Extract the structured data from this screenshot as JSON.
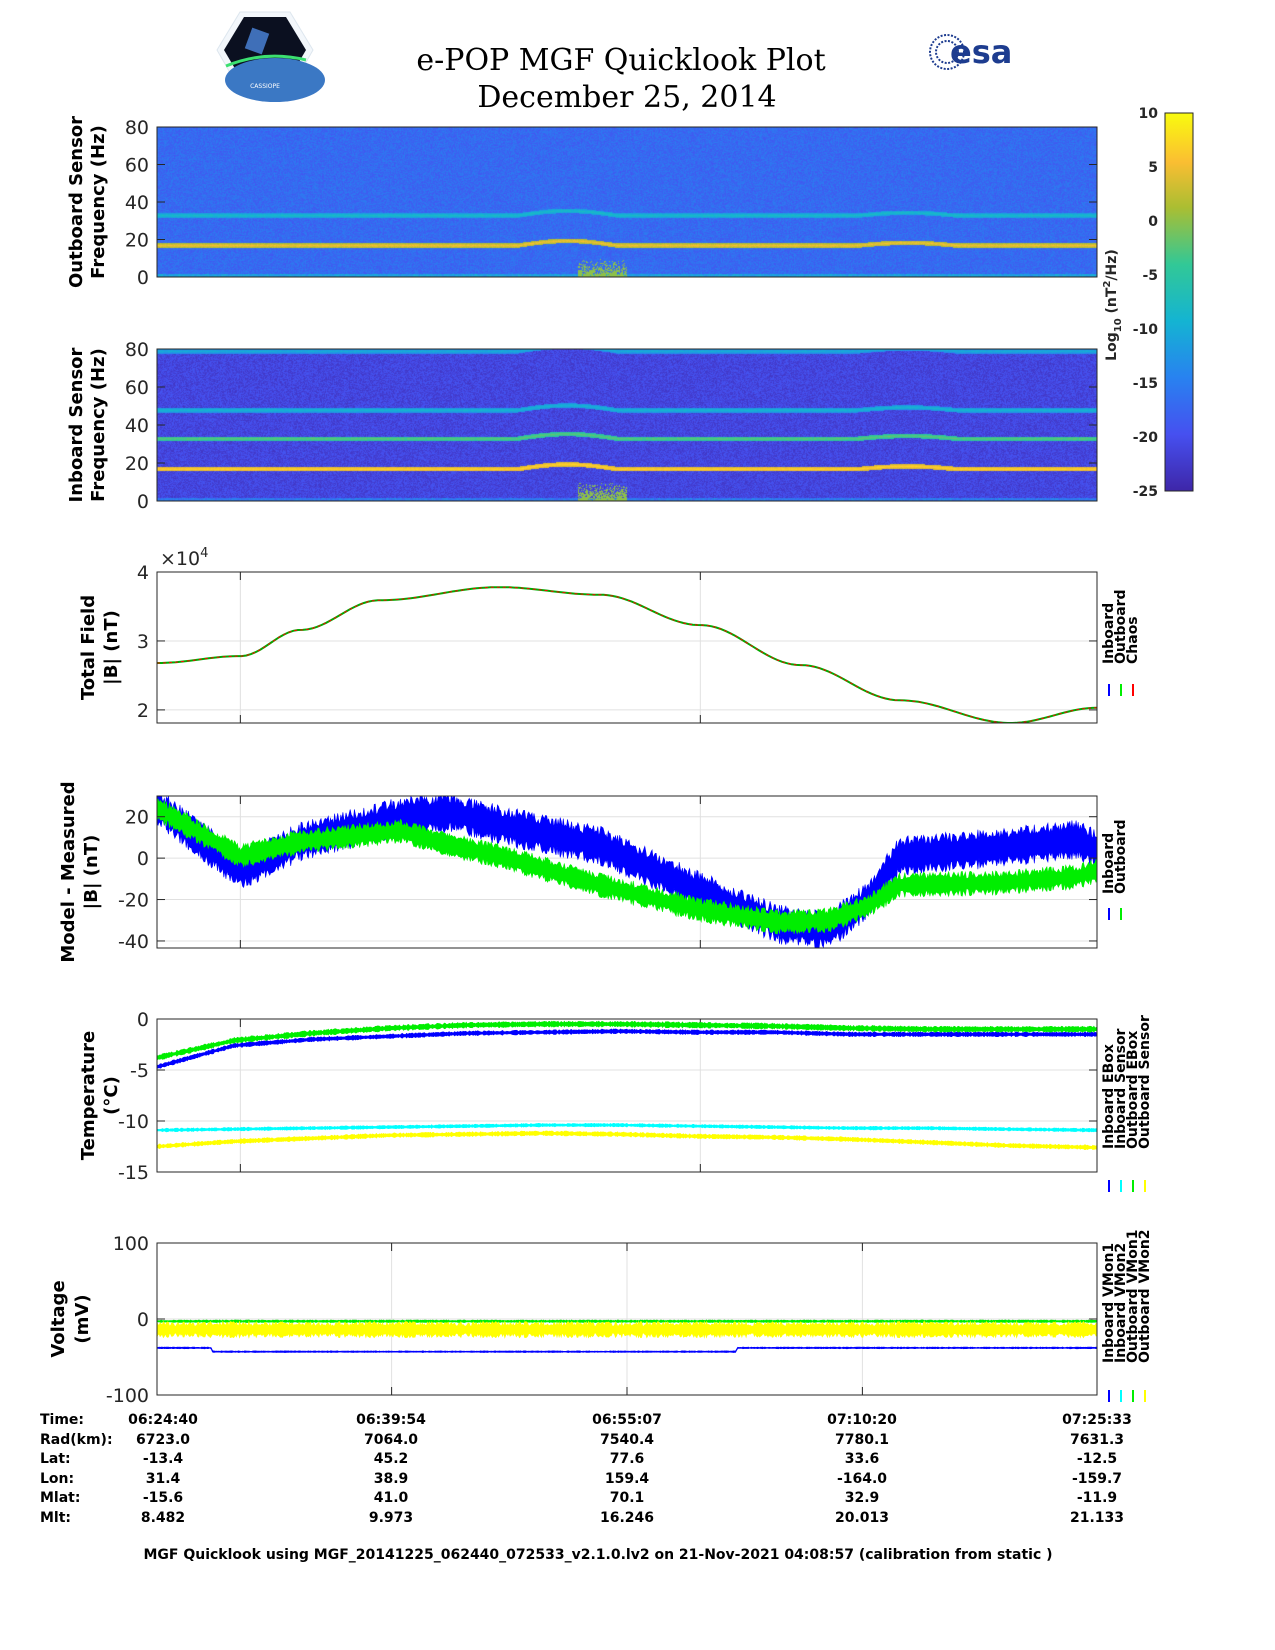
{
  "header": {
    "title": "e-POP MGF Quicklook Plot",
    "date": "December 25, 2014",
    "logo_left_text": "CASSIOPE",
    "logo_right_text": "esa"
  },
  "colors": {
    "inboard": "#0000ff",
    "outboard": "#00ee00",
    "chaos": "#ff0000",
    "cyan": "#00ffff",
    "yellow": "#ffff00"
  },
  "chart_data": [
    {
      "type": "heatmap",
      "id": "outboard-spectrogram",
      "ylabel": [
        "Outboard Sensor",
        "Frequency (Hz)"
      ],
      "ylim": [
        0,
        80
      ],
      "yticks": [
        "0",
        "20",
        "40",
        "60",
        "80"
      ],
      "background_log_power": -17,
      "lines_hz": [
        {
          "f": 17,
          "level": 5
        },
        {
          "f": 33,
          "level": -8
        }
      ]
    },
    {
      "type": "heatmap",
      "id": "inboard-spectrogram",
      "ylabel": [
        "Inboard Sensor",
        "Frequency (Hz)"
      ],
      "ylim": [
        0,
        80
      ],
      "yticks": [
        "0",
        "20",
        "40",
        "60",
        "80"
      ],
      "background_log_power": -21,
      "lines_hz": [
        {
          "f": 17,
          "level": 7
        },
        {
          "f": 33,
          "level": -2
        },
        {
          "f": 48,
          "level": -9
        },
        {
          "f": 79,
          "level": -10
        }
      ]
    },
    {
      "type": "colorbar",
      "label_base": "Log",
      "label_sub": "10",
      "label_mid": " (nT",
      "label_sup": "2",
      "label_end": "/Hz)",
      "range": [
        -25,
        10
      ],
      "ticks": [
        "10",
        "5",
        "0",
        "-5",
        "-10",
        "-15",
        "-20",
        "-25"
      ]
    },
    {
      "type": "line",
      "id": "total-field",
      "ylabel": [
        "Total Field",
        "|B| (nT)"
      ],
      "multiplier": "×10",
      "multiplier_exp": "4",
      "xlim_minutes": [
        0,
        60.9
      ],
      "ylim": [
        1.81,
        4.0
      ],
      "yticks": [
        {
          "v": 2,
          "label": "2"
        },
        {
          "v": 3,
          "label": "3"
        },
        {
          "v": 4,
          "label": "4"
        }
      ],
      "xgrid_minutes": [
        5.4,
        35.2
      ],
      "legend": [
        {
          "name": "Inboard",
          "color": "#0000ff"
        },
        {
          "name": "Outboard",
          "color": "#00ee00"
        },
        {
          "name": "Chaos",
          "color": "#ff0000"
        }
      ],
      "x": [
        0,
        5.4,
        9.3,
        14.4,
        22.2,
        28.7,
        35.2,
        41.7,
        48.1,
        55.3,
        60.9
      ],
      "series": [
        {
          "name": "Chaos",
          "values": [
            2.68,
            2.78,
            3.16,
            3.59,
            3.78,
            3.67,
            3.23,
            2.65,
            2.14,
            1.81,
            2.03
          ]
        }
      ]
    },
    {
      "type": "line",
      "id": "model-minus-measured",
      "ylabel": [
        "Model - Measured",
        "|B| (nT)"
      ],
      "xlim_minutes": [
        0,
        60.9
      ],
      "ylim": [
        -43.4,
        30
      ],
      "yticks": [
        {
          "v": -40,
          "label": "-40"
        },
        {
          "v": -20,
          "label": "-20"
        },
        {
          "v": 0,
          "label": "0"
        },
        {
          "v": 20,
          "label": "20"
        }
      ],
      "xgrid_minutes": [
        5.4,
        35.2
      ],
      "legend": [
        {
          "name": "Inboard",
          "color": "#0000ff"
        },
        {
          "name": "Outboard",
          "color": "#00ee00"
        }
      ],
      "x": [
        0,
        5.4,
        9.3,
        15.8,
        19.1,
        22.2,
        28.7,
        35.2,
        40.3,
        43.5,
        46.1,
        48.1,
        54.5,
        59.6,
        60.9
      ],
      "series": [
        {
          "name": "Inboard",
          "spread": 8,
          "values": [
            25,
            -6,
            8,
            20,
            22,
            16,
            6,
            -16,
            -32,
            -35,
            -20,
            1,
            5,
            9,
            4
          ]
        },
        {
          "name": "Outboard",
          "spread": 5,
          "values": [
            24,
            1,
            8,
            13,
            6,
            1,
            -13,
            -25,
            -31,
            -30,
            -23,
            -13,
            -12,
            -9,
            -6
          ]
        }
      ]
    },
    {
      "type": "line",
      "id": "temperature",
      "ylabel": [
        "Temperature",
        "(°C)"
      ],
      "xlim_minutes": [
        0,
        60.9
      ],
      "ylim": [
        -15,
        0
      ],
      "yticks": [
        {
          "v": -15,
          "label": "-15"
        },
        {
          "v": -10,
          "label": "-10"
        },
        {
          "v": -5,
          "label": "-5"
        },
        {
          "v": 0,
          "label": "0"
        }
      ],
      "xgrid_minutes": [
        5.4,
        35.2
      ],
      "legend": [
        {
          "name": "Inboard EBox",
          "color": "#0000ff"
        },
        {
          "name": "Inboard Sensor",
          "color": "#00ffff"
        },
        {
          "name": "Outboard EBox",
          "color": "#00ee00"
        },
        {
          "name": "Outboard Sensor",
          "color": "#ffff00"
        }
      ],
      "x": [
        0,
        5,
        10,
        15,
        20,
        25,
        30,
        35,
        40,
        45,
        50,
        55,
        60.9
      ],
      "series": [
        {
          "name": "Inboard EBox",
          "spread": 0.2,
          "values": [
            -4.7,
            -2.6,
            -2.0,
            -1.7,
            -1.4,
            -1.3,
            -1.2,
            -1.3,
            -1.3,
            -1.5,
            -1.5,
            -1.5,
            -1.5
          ]
        },
        {
          "name": "Inboard Sensor",
          "spread": 0.15,
          "values": [
            -10.9,
            -10.8,
            -10.7,
            -10.6,
            -10.5,
            -10.4,
            -10.4,
            -10.5,
            -10.6,
            -10.7,
            -10.7,
            -10.8,
            -10.9
          ]
        },
        {
          "name": "Outboard EBox",
          "spread": 0.25,
          "values": [
            -3.8,
            -2.1,
            -1.4,
            -0.9,
            -0.6,
            -0.5,
            -0.5,
            -0.6,
            -0.7,
            -0.9,
            -1.0,
            -1.0,
            -1.0
          ]
        },
        {
          "name": "Outboard Sensor",
          "spread": 0.2,
          "values": [
            -12.5,
            -12.0,
            -11.7,
            -11.4,
            -11.3,
            -11.2,
            -11.3,
            -11.5,
            -11.6,
            -11.8,
            -12.1,
            -12.4,
            -12.6
          ]
        }
      ]
    },
    {
      "type": "line",
      "id": "voltage",
      "ylabel": [
        "Voltage",
        "(mV)"
      ],
      "xlim_minutes": [
        0,
        60.9
      ],
      "ylim": [
        -100,
        100
      ],
      "yticks": [
        {
          "v": -100,
          "label": "-100"
        },
        {
          "v": 0,
          "label": "0"
        },
        {
          "v": 100,
          "label": "100"
        }
      ],
      "xgrid_minutes": [
        15.2,
        30.45,
        45.7
      ],
      "legend": [
        {
          "name": "Inboard VMon1",
          "color": "#0000ff"
        },
        {
          "name": "Inboard VMon2",
          "color": "#00ffff"
        },
        {
          "name": "Outboard VMon1",
          "color": "#00ee00"
        },
        {
          "name": "Outboard VMon2",
          "color": "#ffff00"
        }
      ],
      "x": [
        0,
        3.5,
        3.6,
        11.6,
        11.7,
        37.5,
        37.6,
        46.0,
        46.1,
        60.9
      ],
      "series": [
        {
          "name": "Inboard VMon1",
          "spread": 1,
          "values": [
            -38,
            -38,
            -43,
            -43,
            -43,
            -43,
            -38,
            -38,
            -38,
            -38
          ]
        },
        {
          "name": "Inboard VMon2",
          "spread": 0.5,
          "values": [
            -3,
            -3,
            -3,
            -3,
            -3,
            -3,
            -3,
            -3,
            -3,
            -3
          ]
        },
        {
          "name": "Outboard VMon1",
          "spread": 1.5,
          "values": [
            -3,
            -3,
            -3,
            -3,
            -3,
            -3,
            -3,
            -3,
            -3,
            -3
          ]
        },
        {
          "name": "Outboard VMon2",
          "spread": 9,
          "values": [
            -14,
            -14,
            -14,
            -14,
            -14,
            -14,
            -14,
            -14,
            -14,
            -14
          ]
        }
      ]
    }
  ],
  "table": {
    "row_labels": [
      "Time:",
      "Rad(km):",
      "Lat:",
      "Lon:",
      "Mlat:",
      "Mlt:"
    ],
    "columns": [
      [
        "06:24:40",
        "6723.0",
        "-13.4",
        "31.4",
        "-15.6",
        "8.482"
      ],
      [
        "06:39:54",
        "7064.0",
        "45.2",
        "38.9",
        "41.0",
        "9.973"
      ],
      [
        "06:55:07",
        "7540.4",
        "77.6",
        "159.4",
        "70.1",
        "16.246"
      ],
      [
        "07:10:20",
        "7780.1",
        "33.6",
        "-164.0",
        "32.9",
        "20.013"
      ],
      [
        "07:25:33",
        "7631.3",
        "-12.5",
        "-159.7",
        "-11.9",
        "21.133"
      ]
    ]
  },
  "footer": "MGF Quicklook using MGF_20141225_062440_072533_v2.1.0.lv2 on 21-Nov-2021 04:08:57 (calibration from static )"
}
